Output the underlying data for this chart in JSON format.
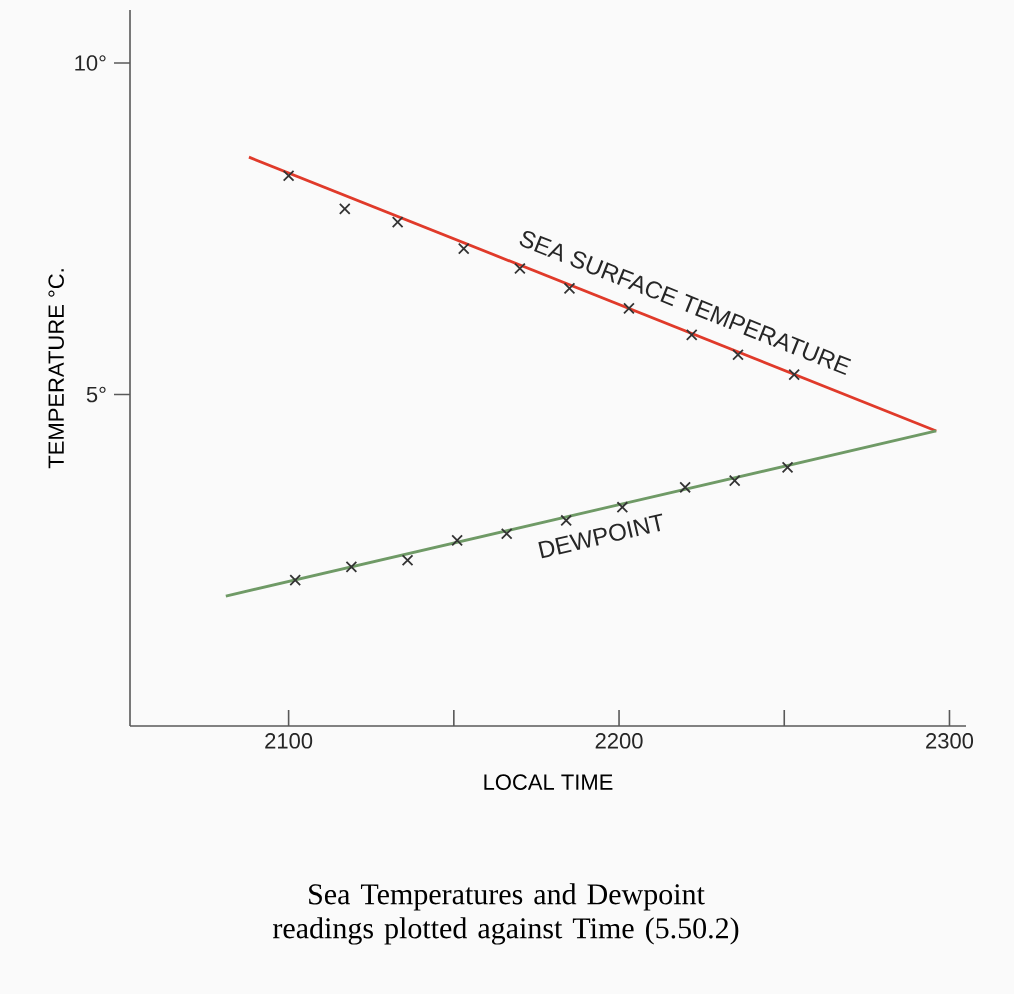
{
  "chart_data": {
    "type": "line",
    "xlabel": "LOCAL TIME",
    "ylabel": "TEMPERATURE  °C.",
    "annotations": [
      "Sea Temperatures and Dewpoint readings plotted against Time (5.50.2)"
    ],
    "xlim": [
      2052,
      2305
    ],
    "ylim": [
      0,
      10.8
    ],
    "xticks": [
      2100,
      {
        "value": 2150,
        "label": null
      },
      2200,
      {
        "value": 2250,
        "label": null
      },
      2300
    ],
    "yticks": [
      {
        "value": 5,
        "label": "5°"
      },
      {
        "value": 10,
        "label": "10°"
      }
    ],
    "grid": false,
    "series": [
      {
        "name": "SEA SURFACE TEMPERATURE",
        "color": "#e03a2a",
        "marker": "none",
        "line_style": "solid",
        "x": [
          2088,
          2296
        ],
        "values": [
          8.58,
          4.45
        ]
      },
      {
        "name": "DEWPOINT",
        "color": "#6f9a66",
        "marker": "none",
        "line_style": "solid",
        "x": [
          2081,
          2296
        ],
        "values": [
          1.96,
          4.45
        ]
      },
      {
        "type": "scatter",
        "color": "#333333",
        "marker": "cross",
        "x": [
          2100,
          2117,
          2133,
          2153,
          2170,
          2185,
          2203,
          2222,
          2236,
          2253
        ],
        "values": [
          8.3,
          7.8,
          7.6,
          7.2,
          6.9,
          6.6,
          6.3,
          5.9,
          5.6,
          5.3
        ]
      },
      {
        "type": "scatter",
        "color": "#333333",
        "marker": "cross",
        "x": [
          2102,
          2119,
          2136,
          2151,
          2166,
          2184,
          2201,
          2220,
          2235,
          2251
        ],
        "values": [
          2.2,
          2.4,
          2.5,
          2.8,
          2.9,
          3.1,
          3.3,
          3.6,
          3.7,
          3.9
        ]
      }
    ]
  }
}
